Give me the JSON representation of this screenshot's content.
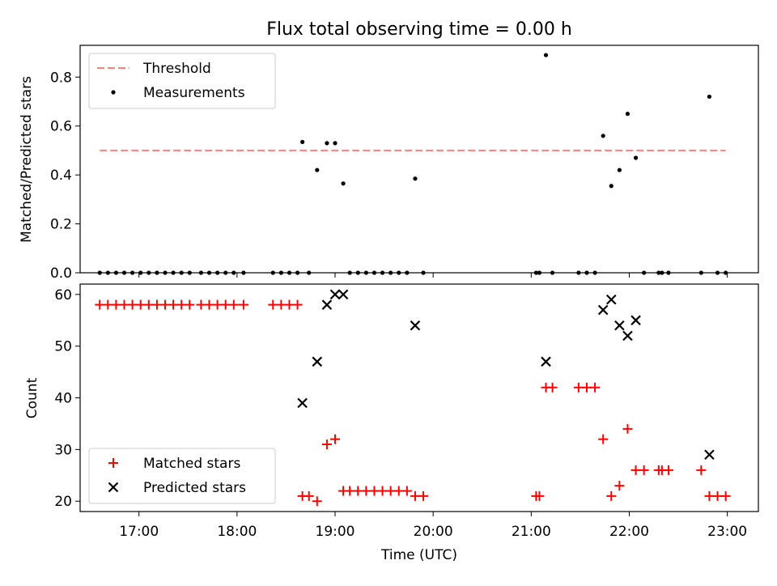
{
  "chart_data": [
    {
      "type": "scatter",
      "title": "Flux total observing time = 0.00 h",
      "xlabel": "",
      "ylabel": "Matched/Predicted stars",
      "xlim": [
        "16:24",
        "23:19"
      ],
      "ylim": [
        0,
        0.93
      ],
      "y_ticks": [
        0.0,
        0.2,
        0.4,
        0.6,
        0.8
      ],
      "y_tick_labels": [
        "0.0",
        "0.2",
        "0.4",
        "0.6",
        "0.8"
      ],
      "x_ticks": [
        "17:00",
        "18:00",
        "19:00",
        "20:00",
        "21:00",
        "22:00",
        "23:00"
      ],
      "legend": {
        "placement": "upper-left",
        "entries": [
          "Threshold",
          "Measurements"
        ]
      },
      "threshold": {
        "name": "Threshold",
        "value": 0.5,
        "x_range": [
          "16:36",
          "22:59"
        ],
        "color": "#ff7f7f"
      },
      "series": [
        {
          "name": "Measurements",
          "color": "#000000",
          "points": [
            [
              "16:36",
              0.0
            ],
            [
              "16:41",
              0.0
            ],
            [
              "16:46",
              0.0
            ],
            [
              "16:51",
              0.0
            ],
            [
              "16:56",
              0.0
            ],
            [
              "17:01",
              0.0
            ],
            [
              "17:06",
              0.0
            ],
            [
              "17:11",
              0.0
            ],
            [
              "17:16",
              0.0
            ],
            [
              "17:21",
              0.0
            ],
            [
              "17:26",
              0.0
            ],
            [
              "17:31",
              0.0
            ],
            [
              "17:38",
              0.0
            ],
            [
              "17:43",
              0.0
            ],
            [
              "17:48",
              0.0
            ],
            [
              "17:53",
              0.0
            ],
            [
              "17:58",
              0.0
            ],
            [
              "18:04",
              0.0
            ],
            [
              "18:22",
              0.0
            ],
            [
              "18:27",
              0.0
            ],
            [
              "18:32",
              0.0
            ],
            [
              "18:37",
              0.0
            ],
            [
              "18:40",
              0.535
            ],
            [
              "18:44",
              0.0
            ],
            [
              "18:49",
              0.42
            ],
            [
              "18:55",
              0.53
            ],
            [
              "19:00",
              0.53
            ],
            [
              "19:05",
              0.365
            ],
            [
              "19:09",
              0.0
            ],
            [
              "19:14",
              0.0
            ],
            [
              "19:19",
              0.0
            ],
            [
              "19:24",
              0.0
            ],
            [
              "19:29",
              0.0
            ],
            [
              "19:34",
              0.0
            ],
            [
              "19:39",
              0.0
            ],
            [
              "19:44",
              0.0
            ],
            [
              "19:49",
              0.385
            ],
            [
              "19:54",
              0.0
            ],
            [
              "21:03",
              0.0
            ],
            [
              "21:05",
              0.0
            ],
            [
              "21:09",
              0.89
            ],
            [
              "21:13",
              0.0
            ],
            [
              "21:29",
              0.0
            ],
            [
              "21:34",
              0.0
            ],
            [
              "21:39",
              0.0
            ],
            [
              "21:44",
              0.56
            ],
            [
              "21:49",
              0.355
            ],
            [
              "21:54",
              0.42
            ],
            [
              "21:59",
              0.65
            ],
            [
              "22:04",
              0.47
            ],
            [
              "22:09",
              0.0
            ],
            [
              "22:18",
              0.0
            ],
            [
              "22:20",
              0.0
            ],
            [
              "22:24",
              0.0
            ],
            [
              "22:44",
              0.0
            ],
            [
              "22:49",
              0.72
            ],
            [
              "22:54",
              0.0
            ],
            [
              "22:59",
              0.0
            ]
          ]
        }
      ]
    },
    {
      "type": "scatter",
      "title": "",
      "xlabel": "Time (UTC)",
      "ylabel": "Count",
      "xlim": [
        "16:24",
        "23:19"
      ],
      "ylim": [
        18,
        62
      ],
      "y_ticks": [
        20,
        30,
        40,
        50,
        60
      ],
      "y_tick_labels": [
        "20",
        "30",
        "40",
        "50",
        "60"
      ],
      "x_ticks": [
        "17:00",
        "18:00",
        "19:00",
        "20:00",
        "21:00",
        "22:00",
        "23:00"
      ],
      "legend": {
        "placement": "lower-left",
        "entries": [
          "Matched stars",
          "Predicted stars"
        ]
      },
      "series": [
        {
          "name": "Matched stars",
          "marker": "plus",
          "color": "#ff0000",
          "points": [
            [
              "16:36",
              58
            ],
            [
              "16:41",
              58
            ],
            [
              "16:46",
              58
            ],
            [
              "16:51",
              58
            ],
            [
              "16:56",
              58
            ],
            [
              "17:01",
              58
            ],
            [
              "17:06",
              58
            ],
            [
              "17:11",
              58
            ],
            [
              "17:16",
              58
            ],
            [
              "17:21",
              58
            ],
            [
              "17:26",
              58
            ],
            [
              "17:31",
              58
            ],
            [
              "17:38",
              58
            ],
            [
              "17:43",
              58
            ],
            [
              "17:48",
              58
            ],
            [
              "17:53",
              58
            ],
            [
              "17:58",
              58
            ],
            [
              "18:04",
              58
            ],
            [
              "18:22",
              58
            ],
            [
              "18:27",
              58
            ],
            [
              "18:32",
              58
            ],
            [
              "18:37",
              58
            ],
            [
              "18:40",
              21
            ],
            [
              "18:44",
              21
            ],
            [
              "18:49",
              20
            ],
            [
              "18:55",
              31
            ],
            [
              "19:00",
              32
            ],
            [
              "19:05",
              22
            ],
            [
              "19:09",
              22
            ],
            [
              "19:14",
              22
            ],
            [
              "19:19",
              22
            ],
            [
              "19:24",
              22
            ],
            [
              "19:29",
              22
            ],
            [
              "19:34",
              22
            ],
            [
              "19:39",
              22
            ],
            [
              "19:44",
              22
            ],
            [
              "19:49",
              21
            ],
            [
              "19:54",
              21
            ],
            [
              "21:03",
              21
            ],
            [
              "21:05",
              21
            ],
            [
              "21:09",
              42
            ],
            [
              "21:13",
              42
            ],
            [
              "21:29",
              42
            ],
            [
              "21:34",
              42
            ],
            [
              "21:39",
              42
            ],
            [
              "21:44",
              32
            ],
            [
              "21:49",
              21
            ],
            [
              "21:54",
              23
            ],
            [
              "21:59",
              34
            ],
            [
              "22:04",
              26
            ],
            [
              "22:09",
              26
            ],
            [
              "22:18",
              26
            ],
            [
              "22:20",
              26
            ],
            [
              "22:24",
              26
            ],
            [
              "22:44",
              26
            ],
            [
              "22:49",
              21
            ],
            [
              "22:54",
              21
            ],
            [
              "22:59",
              21
            ]
          ]
        },
        {
          "name": "Predicted stars",
          "marker": "x",
          "color": "#000000",
          "points": [
            [
              "18:40",
              39
            ],
            [
              "18:49",
              47
            ],
            [
              "18:55",
              58
            ],
            [
              "19:00",
              60
            ],
            [
              "19:05",
              60
            ],
            [
              "19:49",
              54
            ],
            [
              "21:09",
              47
            ],
            [
              "21:44",
              57
            ],
            [
              "21:49",
              59
            ],
            [
              "21:54",
              54
            ],
            [
              "21:59",
              52
            ],
            [
              "22:04",
              55
            ],
            [
              "22:49",
              29
            ]
          ]
        }
      ]
    }
  ]
}
